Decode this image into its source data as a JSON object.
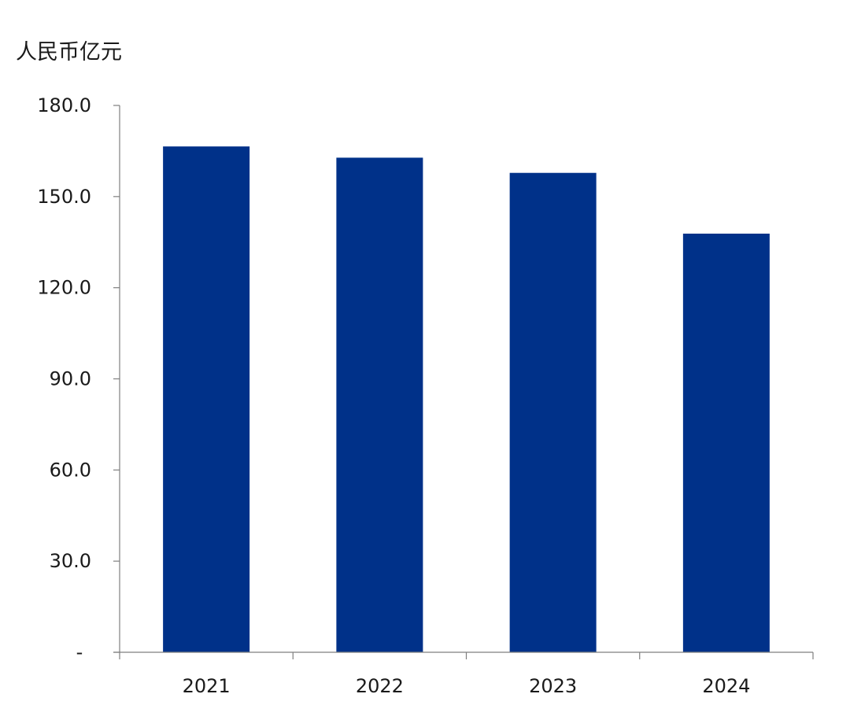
{
  "chart_data": {
    "type": "bar",
    "categories": [
      "2021",
      "2022",
      "2023",
      "2024"
    ],
    "values": [
      166.5,
      162.8,
      157.8,
      137.8
    ],
    "ylabel": "人民币亿元",
    "ylim": [
      0,
      180
    ],
    "yticks": [
      0,
      30,
      60,
      90,
      120,
      150,
      180
    ],
    "ytick_labels": [
      "-",
      "30.0",
      "60.0",
      "90.0",
      "120.0",
      "150.0",
      "180.0"
    ],
    "grid": false,
    "colors": {
      "bar": "#003189",
      "axis": "#7f7f7f"
    }
  }
}
